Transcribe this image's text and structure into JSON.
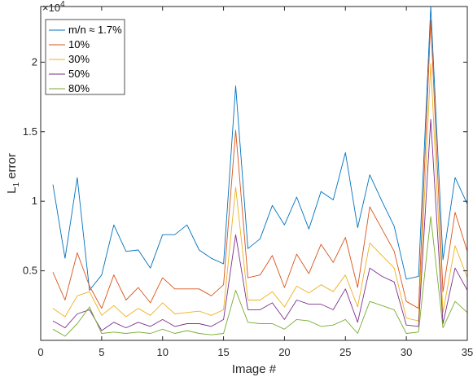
{
  "chart_data": {
    "type": "line",
    "xlabel": "Image #",
    "ylabel_main": "L",
    "ylabel_sub": "1",
    "ylabel_rest": " error",
    "exponent_base": "10",
    "exponent_power": "4",
    "xlim": [
      0,
      35
    ],
    "ylim": [
      0,
      24000
    ],
    "x_ticks": [
      0,
      5,
      10,
      15,
      20,
      25,
      30,
      35
    ],
    "y_ticks": [
      5000,
      10000,
      15000,
      20000
    ],
    "y_tick_labels": [
      "0.5",
      "1",
      "1.5",
      "2"
    ],
    "legend_position": "top-left",
    "x": [
      1,
      2,
      3,
      4,
      5,
      6,
      7,
      8,
      9,
      10,
      11,
      12,
      13,
      14,
      15,
      16,
      17,
      18,
      19,
      20,
      21,
      22,
      23,
      24,
      25,
      26,
      27,
      28,
      29,
      30,
      31,
      32,
      33,
      34,
      35
    ],
    "series": [
      {
        "name": "m/n ≈ 1.7%",
        "color": "#0072bd",
        "values": [
          11200,
          5900,
          11700,
          3600,
          4700,
          8300,
          6400,
          6500,
          5200,
          7600,
          7600,
          8300,
          6500,
          5900,
          5500,
          18300,
          6600,
          7300,
          9700,
          8300,
          10300,
          8000,
          10700,
          10100,
          13500,
          8100,
          11900,
          10000,
          8200,
          4400,
          4600,
          24100,
          5800,
          11700,
          9800
        ]
      },
      {
        "name": "10%",
        "color": "#d95319",
        "values": [
          4900,
          2900,
          6300,
          3900,
          2300,
          4700,
          2900,
          3800,
          2700,
          4500,
          3700,
          3700,
          3700,
          3200,
          4000,
          15100,
          4500,
          4700,
          6100,
          3800,
          6200,
          4800,
          6900,
          5600,
          7400,
          3800,
          9600,
          8000,
          6400,
          2800,
          2300,
          23000,
          3500,
          9200,
          6400
        ]
      },
      {
        "name": "30%",
        "color": "#edb120",
        "values": [
          2300,
          1700,
          3200,
          3500,
          1800,
          2500,
          1700,
          2300,
          1800,
          2700,
          1900,
          2000,
          2100,
          1800,
          2200,
          11000,
          2900,
          2900,
          3500,
          2400,
          3900,
          3400,
          4000,
          3500,
          4700,
          2400,
          7000,
          6100,
          5200,
          1600,
          1400,
          19900,
          2000,
          6800,
          4500
        ]
      },
      {
        "name": "50%",
        "color": "#7e2f8e",
        "values": [
          1400,
          900,
          1900,
          2200,
          700,
          1300,
          900,
          1300,
          1000,
          1500,
          1000,
          1200,
          1200,
          1000,
          1500,
          7600,
          2200,
          2200,
          2700,
          1500,
          2900,
          2600,
          2600,
          2200,
          3700,
          1300,
          5200,
          4600,
          4200,
          1100,
          1000,
          15900,
          1200,
          5200,
          3600
        ]
      },
      {
        "name": "80%",
        "color": "#77ac30",
        "values": [
          800,
          300,
          1200,
          2400,
          500,
          600,
          500,
          600,
          500,
          800,
          500,
          700,
          500,
          400,
          500,
          3600,
          1300,
          1200,
          1200,
          800,
          1500,
          1400,
          1000,
          1100,
          1500,
          500,
          2800,
          2500,
          2200,
          500,
          600,
          8900,
          900,
          2800,
          2000
        ]
      }
    ]
  }
}
